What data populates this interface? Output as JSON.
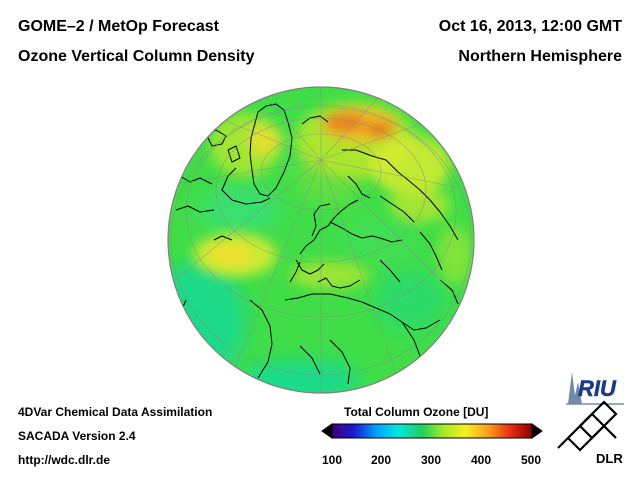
{
  "header": {
    "product": "GOME–2 / MetOp Forecast",
    "variable": "Ozone Vertical Column Density",
    "datetime": "Oct 16, 2013, 12:00 GMT",
    "region": "Northern Hemisphere"
  },
  "footer": {
    "method": "4DVar Chemical Data Assimilation",
    "version": "SACADA Version 2.4",
    "url": "http://wdc.dlr.de"
  },
  "colorbar": {
    "title": "Total Column Ozone [DU]",
    "ticks": [
      "100",
      "200",
      "300",
      "400",
      "500"
    ],
    "colors": [
      "#3a0078",
      "#1b1bd0",
      "#00a0ff",
      "#00e8e0",
      "#20d060",
      "#a8e828",
      "#f8f020",
      "#f8a020",
      "#e83010",
      "#8a0000"
    ]
  },
  "logos": {
    "riu": "RIU",
    "dlr": "DLR"
  },
  "map": {
    "base_color": "#40dd48",
    "outline_color": "#808080",
    "coast_color": "#000000"
  }
}
